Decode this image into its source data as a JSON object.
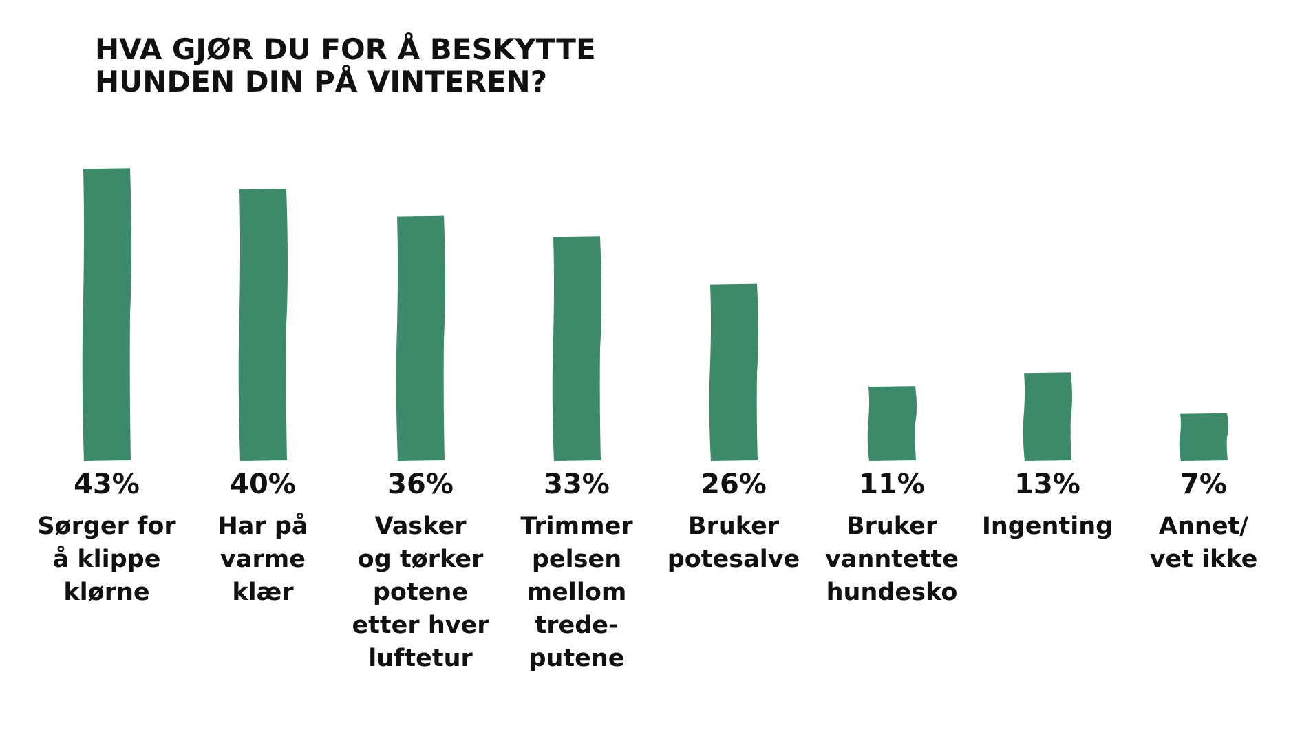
{
  "chart_data": {
    "type": "bar",
    "title_lines": [
      "HVA GJØR DU FOR Å BESKYTTE",
      "HUNDEN DIN PÅ VINTEREN?"
    ],
    "categories": [
      [
        "Sørger for",
        "å klippe",
        "klørne"
      ],
      [
        "Har på",
        "varme",
        "klær"
      ],
      [
        "Vasker",
        "og tørker",
        "potene",
        "etter hver",
        "luftetur"
      ],
      [
        "Trimmer",
        "pelsen",
        "mellom",
        "trede-",
        "putene"
      ],
      [
        "Bruker",
        "potesalve"
      ],
      [
        "Bruker",
        "vanntette",
        "hundesko"
      ],
      [
        "Ingenting"
      ],
      [
        "Annet/",
        "vet ikke"
      ]
    ],
    "values": [
      43,
      40,
      36,
      33,
      26,
      11,
      13,
      7
    ],
    "value_labels": [
      "43%",
      "40%",
      "36%",
      "33%",
      "26%",
      "11%",
      "13%",
      "7%"
    ],
    "unit": "%",
    "ylim": [
      0,
      43
    ],
    "grid": false,
    "legend": "none",
    "bar_color": "#3d8a6b"
  }
}
